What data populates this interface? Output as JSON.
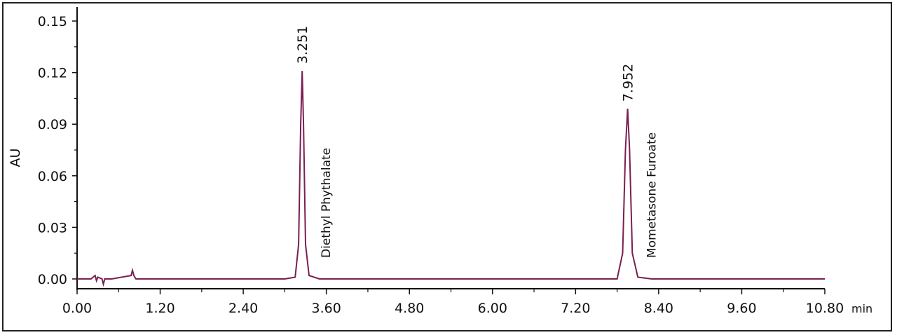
{
  "chart_data": {
    "type": "line",
    "xlabel": "min",
    "ylabel": "AU",
    "xlim": [
      0,
      10.8
    ],
    "ylim": [
      0,
      0.15
    ],
    "grid": false,
    "line_color": "#7a1f52",
    "x_ticks": [
      "0.00",
      "1.20",
      "2.40",
      "3.60",
      "4.80",
      "6.00",
      "7.20",
      "8.40",
      "9.60",
      "10.80"
    ],
    "y_ticks": [
      "0.00",
      "0.03",
      "0.06",
      "0.09",
      "0.12",
      "0.15"
    ],
    "series": [
      {
        "x": [
          0.0,
          0.2,
          0.26,
          0.28,
          0.3,
          0.36,
          0.38,
          0.4,
          0.44,
          0.5,
          0.78,
          0.8,
          0.82,
          0.85,
          1.0,
          2.4,
          3.0,
          3.15,
          3.2,
          3.23,
          3.251,
          3.27,
          3.3,
          3.35,
          3.5,
          5.0,
          7.0,
          7.8,
          7.88,
          7.92,
          7.952,
          7.98,
          8.02,
          8.1,
          8.3,
          9.6,
          10.8
        ],
        "y": [
          0.0,
          0.0,
          0.002,
          -0.001,
          0.001,
          0.0,
          -0.003,
          0.0,
          0.0,
          0.0,
          0.002,
          0.005,
          0.002,
          0.0,
          0.0,
          0.0,
          0.0,
          0.001,
          0.02,
          0.09,
          0.121,
          0.09,
          0.02,
          0.002,
          0.0,
          0.0,
          0.0,
          0.0,
          0.015,
          0.075,
          0.099,
          0.075,
          0.015,
          0.001,
          0.0,
          0.0,
          0.0
        ]
      }
    ],
    "peaks": [
      {
        "rt_label": "3.251",
        "compound": "Diethyl Phythalate",
        "x": 3.251,
        "y": 0.121
      },
      {
        "rt_label": "7.952",
        "compound": "Mometasone Furoate",
        "x": 7.952,
        "y": 0.099
      }
    ]
  }
}
